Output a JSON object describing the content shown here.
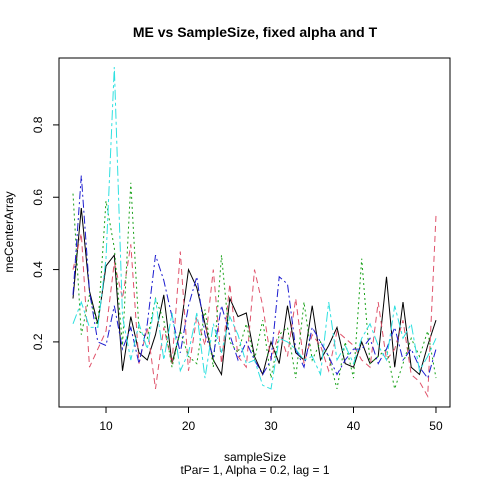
{
  "chart_data": {
    "type": "line",
    "title": "ME vs SampleSize, fixed alpha and T",
    "xlabel": "sampleSize",
    "ylabel": "meCenterArray",
    "subtitle": "tPar= 1, Alpha = 0.2, lag = 1",
    "xlim": [
      4.3,
      51.7
    ],
    "ylim": [
      0.02,
      0.985
    ],
    "xticks": [
      10,
      20,
      30,
      40,
      50
    ],
    "yticks": [
      0.2,
      0.4,
      0.6,
      0.8
    ],
    "x": [
      6,
      7,
      8,
      9,
      10,
      11,
      12,
      13,
      14,
      15,
      16,
      17,
      18,
      19,
      20,
      21,
      22,
      23,
      24,
      25,
      26,
      27,
      28,
      29,
      30,
      31,
      32,
      33,
      34,
      35,
      36,
      37,
      38,
      39,
      40,
      41,
      42,
      43,
      44,
      45,
      46,
      47,
      48,
      49,
      50
    ],
    "series": [
      {
        "color": "#000000",
        "dash": "solid",
        "values": [
          0.32,
          0.57,
          0.34,
          0.25,
          0.41,
          0.44,
          0.12,
          0.27,
          0.17,
          0.15,
          0.22,
          0.33,
          0.14,
          0.23,
          0.4,
          0.35,
          0.25,
          0.15,
          0.11,
          0.32,
          0.27,
          0.28,
          0.16,
          0.11,
          0.2,
          0.14,
          0.3,
          0.17,
          0.15,
          0.3,
          0.15,
          0.19,
          0.24,
          0.14,
          0.13,
          0.2,
          0.14,
          0.16,
          0.38,
          0.13,
          0.31,
          0.13,
          0.11,
          0.19,
          0.26
        ]
      },
      {
        "color": "#df536b",
        "dash": "6,4",
        "values": [
          0.4,
          0.5,
          0.13,
          0.18,
          0.23,
          0.42,
          0.32,
          0.47,
          0.14,
          0.24,
          0.07,
          0.24,
          0.14,
          0.45,
          0.12,
          0.27,
          0.19,
          0.4,
          0.14,
          0.36,
          0.16,
          0.13,
          0.4,
          0.3,
          0.15,
          0.23,
          0.16,
          0.32,
          0.14,
          0.22,
          0.19,
          0.12,
          0.23,
          0.21,
          0.19,
          0.15,
          0.13,
          0.31,
          0.15,
          0.18,
          0.26,
          0.11,
          0.09,
          0.05,
          0.55
        ]
      },
      {
        "color": "#16a016",
        "dash": "2,3",
        "values": [
          0.61,
          0.22,
          0.33,
          0.24,
          0.59,
          0.46,
          0.19,
          0.64,
          0.23,
          0.21,
          0.32,
          0.26,
          0.13,
          0.23,
          0.16,
          0.14,
          0.29,
          0.13,
          0.44,
          0.2,
          0.17,
          0.25,
          0.15,
          0.26,
          0.1,
          0.22,
          0.24,
          0.1,
          0.31,
          0.15,
          0.2,
          0.16,
          0.07,
          0.2,
          0.1,
          0.43,
          0.14,
          0.16,
          0.18,
          0.07,
          0.14,
          0.21,
          0.16,
          0.23,
          0.1
        ]
      },
      {
        "color": "#1c1ccf",
        "dash": "8,3,2,3",
        "values": [
          0.33,
          0.66,
          0.34,
          0.2,
          0.19,
          0.3,
          0.18,
          0.24,
          0.14,
          0.25,
          0.44,
          0.37,
          0.27,
          0.17,
          0.3,
          0.38,
          0.22,
          0.16,
          0.3,
          0.22,
          0.15,
          0.2,
          0.15,
          0.11,
          0.15,
          0.38,
          0.36,
          0.18,
          0.13,
          0.24,
          0.2,
          0.16,
          0.11,
          0.15,
          0.18,
          0.18,
          0.21,
          0.14,
          0.18,
          0.24,
          0.15,
          0.18,
          0.13,
          0.1,
          0.18
        ]
      },
      {
        "color": "#2ee0e0",
        "dash": "10,3,3,3",
        "values": [
          0.25,
          0.31,
          0.24,
          0.24,
          0.43,
          0.96,
          0.27,
          0.15,
          0.25,
          0.18,
          0.32,
          0.15,
          0.28,
          0.12,
          0.17,
          0.28,
          0.1,
          0.25,
          0.17,
          0.27,
          0.22,
          0.14,
          0.15,
          0.08,
          0.07,
          0.21,
          0.2,
          0.18,
          0.15,
          0.16,
          0.11,
          0.31,
          0.15,
          0.19,
          0.14,
          0.21,
          0.25,
          0.19,
          0.15,
          0.3,
          0.21,
          0.25,
          0.12,
          0.16,
          0.21
        ]
      }
    ]
  }
}
